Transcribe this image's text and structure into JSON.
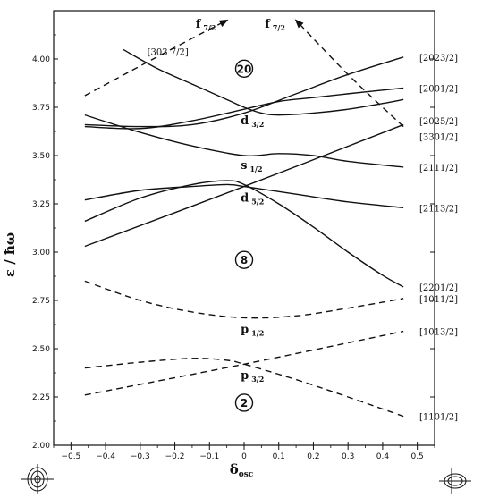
{
  "chart_data": {
    "type": "line",
    "title": "",
    "xlabel": "δ",
    "xlabel_sub": "osc",
    "ylabel": "ε / ħω",
    "xlim": [
      -0.55,
      0.55
    ],
    "ylim": [
      2.0,
      4.25
    ],
    "grid": false,
    "x_ticks": [
      -0.5,
      -0.4,
      -0.3,
      -0.2,
      -0.1,
      0.0,
      0.1,
      0.2,
      0.3,
      0.4,
      0.5
    ],
    "x_tick_labels": [
      "−0.5",
      "−0.4",
      "−0.3",
      "−0.2",
      "−0.1",
      "0",
      "0.1",
      "0.2",
      "0.3",
      "0.4",
      "0.5"
    ],
    "y_ticks": [
      2.0,
      2.25,
      2.5,
      2.75,
      3.0,
      3.25,
      3.5,
      3.75,
      4.0
    ],
    "y_tick_labels": [
      "2.00",
      "2.25",
      "2.50",
      "2.75",
      "3.00",
      "3.25",
      "3.50",
      "3.75",
      "4.00"
    ],
    "series": [
      {
        "style": "solid",
        "x": [
          -0.35,
          -0.25,
          -0.15,
          -0.05,
          0.0,
          0.05,
          0.1,
          0.2,
          0.3,
          0.4,
          0.46
        ],
        "y": [
          4.05,
          3.95,
          3.87,
          3.79,
          3.75,
          3.72,
          3.71,
          3.72,
          3.74,
          3.77,
          3.79
        ]
      },
      {
        "style": "solid",
        "x": [
          -0.46,
          -0.3,
          -0.15,
          0.0,
          0.15,
          0.3,
          0.46
        ],
        "y": [
          3.66,
          3.65,
          3.66,
          3.72,
          3.82,
          3.92,
          4.01
        ]
      },
      {
        "style": "solid",
        "x": [
          -0.46,
          -0.3,
          -0.15,
          0.0,
          0.1,
          0.2,
          0.3,
          0.46
        ],
        "y": [
          3.65,
          3.64,
          3.68,
          3.74,
          3.78,
          3.8,
          3.82,
          3.85
        ]
      },
      {
        "style": "solid",
        "x": [
          -0.46,
          -0.3,
          -0.15,
          0.0,
          0.1,
          0.2,
          0.3,
          0.46
        ],
        "y": [
          3.71,
          3.62,
          3.55,
          3.5,
          3.51,
          3.5,
          3.47,
          3.44
        ]
      },
      {
        "style": "solid",
        "x": [
          -0.46,
          0.0,
          0.46
        ],
        "y": [
          3.03,
          3.34,
          3.66
        ]
      },
      {
        "style": "solid",
        "x": [
          -0.46,
          -0.3,
          -0.15,
          -0.05,
          0.0,
          0.15,
          0.3,
          0.46
        ],
        "y": [
          3.27,
          3.32,
          3.34,
          3.35,
          3.34,
          3.3,
          3.26,
          3.23
        ]
      },
      {
        "style": "solid",
        "x": [
          -0.46,
          -0.3,
          -0.15,
          -0.05,
          0.0,
          0.1,
          0.2,
          0.3,
          0.4,
          0.46
        ],
        "y": [
          3.16,
          3.28,
          3.35,
          3.37,
          3.35,
          3.25,
          3.13,
          3.0,
          2.88,
          2.82
        ]
      },
      {
        "style": "dashed",
        "x": [
          -0.46,
          -0.3,
          -0.15,
          0.0,
          0.15,
          0.3,
          0.46
        ],
        "y": [
          2.85,
          2.75,
          2.69,
          2.66,
          2.67,
          2.71,
          2.76
        ]
      },
      {
        "style": "dashed",
        "x": [
          -0.46,
          0.0,
          0.46
        ],
        "y": [
          2.26,
          2.42,
          2.59
        ]
      },
      {
        "style": "dashed",
        "x": [
          -0.46,
          -0.3,
          -0.15,
          -0.05,
          0.0,
          0.15,
          0.3,
          0.46
        ],
        "y": [
          2.4,
          2.43,
          2.45,
          2.44,
          2.42,
          2.34,
          2.25,
          2.15
        ]
      },
      {
        "style": "dashed",
        "arrow": true,
        "x": [
          -0.46,
          -0.2,
          -0.05
        ],
        "y": [
          3.81,
          4.06,
          4.2
        ]
      },
      {
        "style": "dashed",
        "arrow": true,
        "x": [
          0.46,
          0.3,
          0.15
        ],
        "y": [
          3.65,
          3.92,
          4.2
        ]
      }
    ],
    "right_labels": [
      {
        "text": "[2023/2]",
        "y": 4.01
      },
      {
        "text": "[2001/2]",
        "y": 3.85
      },
      {
        "text": "[2025/2]",
        "y": 3.68
      },
      {
        "text": "[3301/2]",
        "y": 3.6
      },
      {
        "text": "[2111/2]",
        "y": 3.44
      },
      {
        "text": "[2113/2]",
        "y": 3.23
      },
      {
        "text": "[2201/2]",
        "y": 2.82
      },
      {
        "text": "[1011/2]",
        "y": 2.76
      },
      {
        "text": "[1013/2]",
        "y": 2.59
      },
      {
        "text": "[1101/2]",
        "y": 2.15
      }
    ],
    "state_labels": [
      {
        "main": "d",
        "sub": "3/2",
        "x": -0.01,
        "y": 3.68
      },
      {
        "main": "s",
        "sub": "1/2",
        "x": -0.01,
        "y": 3.45
      },
      {
        "main": "d",
        "sub": "5/2",
        "x": -0.01,
        "y": 3.28
      },
      {
        "main": "p",
        "sub": "1/2",
        "x": -0.01,
        "y": 2.6
      },
      {
        "main": "p",
        "sub": "3/2",
        "x": -0.01,
        "y": 2.36
      },
      {
        "main": "f",
        "sub": "7/2",
        "x": -0.14,
        "y": 4.18
      },
      {
        "main": "f",
        "sub": "7/2",
        "x": 0.06,
        "y": 4.18
      }
    ],
    "top_left_label": {
      "text": "[303 7/2]",
      "x": -0.28,
      "y": 4.04
    },
    "magic_numbers": [
      {
        "text": "20",
        "x": 0.0,
        "y": 3.95
      },
      {
        "text": "8",
        "x": 0.0,
        "y": 2.96
      },
      {
        "text": "2",
        "x": 0.0,
        "y": 2.22
      }
    ]
  }
}
